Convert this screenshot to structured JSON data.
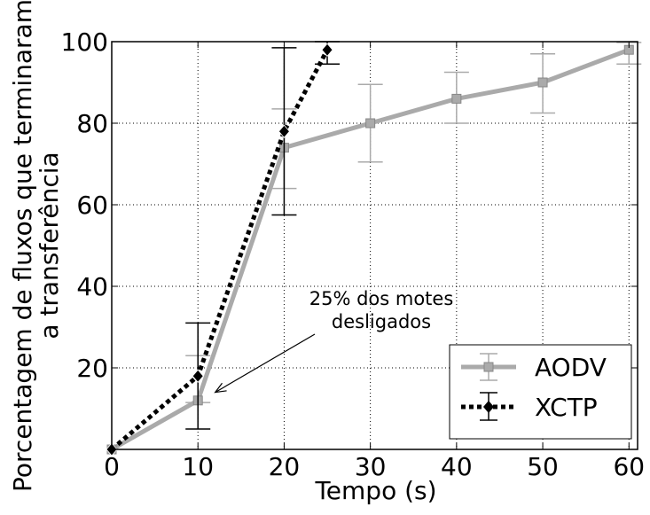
{
  "chart_data": {
    "type": "line",
    "title": "",
    "xlabel": "Tempo (s)",
    "ylabel_lines": [
      "Porcentagem de fluxos que terminaram",
      "a transferência"
    ],
    "xlim": [
      0,
      61
    ],
    "ylim": [
      0,
      100
    ],
    "xticks": [
      0,
      10,
      20,
      30,
      40,
      50,
      60
    ],
    "yticks": [
      20,
      40,
      60,
      80,
      100
    ],
    "grid": true,
    "legend_position": "bottom-right",
    "series": [
      {
        "name": "AODV",
        "color": "#aaaaaa",
        "line_style": "solid",
        "marker": "square",
        "points": [
          {
            "x": 0,
            "y": 0,
            "err": null
          },
          {
            "x": 10,
            "y": 12,
            "err": [
              11.5,
              23
            ]
          },
          {
            "x": 20,
            "y": 74,
            "err": [
              64,
              83.5
            ]
          },
          {
            "x": 30,
            "y": 80,
            "err": [
              70.5,
              89.5
            ]
          },
          {
            "x": 40,
            "y": 86,
            "err": [
              80,
              92.5
            ]
          },
          {
            "x": 50,
            "y": 90,
            "err": [
              82.5,
              97
            ]
          },
          {
            "x": 60,
            "y": 98,
            "err": [
              94.5,
              99.8
            ]
          }
        ]
      },
      {
        "name": "XCTP",
        "color": "#000000",
        "line_style": "dotted",
        "marker": "diamond",
        "points": [
          {
            "x": 0,
            "y": 0,
            "err": null
          },
          {
            "x": 10,
            "y": 18,
            "err": [
              5,
              31
            ]
          },
          {
            "x": 20,
            "y": 78,
            "err": [
              57.5,
              98.5
            ]
          },
          {
            "x": 25,
            "y": 98,
            "err": [
              94.5,
              100
            ]
          }
        ]
      }
    ],
    "annotation": {
      "text_lines": [
        "25% dos motes",
        "desligados"
      ],
      "arrow_to": {
        "x": 12,
        "y": 14
      }
    }
  }
}
